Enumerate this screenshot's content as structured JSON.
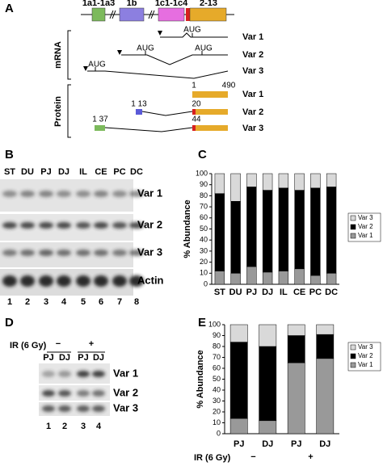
{
  "figure": {
    "A": {
      "label": "A",
      "exons": [
        "1a1-1a3",
        "1b",
        "1c1-1c4",
        "2-13"
      ],
      "mrna_label": "mRNA",
      "protein_label": "Protein",
      "mrna": [
        {
          "name": "Var 1",
          "codons": [
            "AUG"
          ]
        },
        {
          "name": "Var 2",
          "codons": [
            "AUG",
            "AUG"
          ]
        },
        {
          "name": "Var 3",
          "codons": [
            "AUG"
          ]
        }
      ],
      "protein": [
        {
          "name": "Var 1",
          "numbers": [
            "1",
            "490"
          ]
        },
        {
          "name": "Var 2",
          "numbers": [
            "1 13",
            "20"
          ]
        },
        {
          "name": "Var 3",
          "numbers": [
            "1 37",
            "44"
          ]
        }
      ]
    },
    "B": {
      "label": "B",
      "lanes": [
        "ST",
        "DU",
        "PJ",
        "DJ",
        "IL",
        "CE",
        "PC",
        "DC"
      ],
      "rows": [
        "Var 1",
        "Var 2",
        "Var 3",
        "Actin"
      ],
      "lane_numbers": [
        1,
        2,
        3,
        4,
        5,
        6,
        7,
        8
      ]
    },
    "D": {
      "label": "D",
      "treatment": "IR (6 Gy)",
      "groups": [
        "−",
        "+"
      ],
      "lanes": [
        "PJ",
        "DJ",
        "PJ",
        "DJ"
      ],
      "rows": [
        "Var 1",
        "Var 2",
        "Var 3"
      ],
      "lane_numbers": [
        1,
        2,
        3,
        4
      ]
    }
  },
  "chart_data": [
    {
      "type": "bar",
      "stacked": true,
      "panel": "C",
      "ylabel": "% Abundance",
      "categories": [
        "ST",
        "DU",
        "PJ",
        "DJ",
        "IL",
        "CE",
        "PC",
        "DC"
      ],
      "series": [
        {
          "name": "Var 1",
          "color": "#999999",
          "values": [
            12,
            10,
            16,
            11,
            12,
            14,
            8,
            10
          ]
        },
        {
          "name": "Var 2",
          "color": "#000000",
          "values": [
            70,
            65,
            72,
            74,
            75,
            71,
            79,
            78
          ]
        },
        {
          "name": "Var 3",
          "color": "#d9d9d9",
          "values": [
            18,
            25,
            12,
            15,
            13,
            15,
            13,
            12
          ]
        }
      ],
      "ylim": [
        0,
        100
      ],
      "yticks": [
        0,
        10,
        20,
        30,
        40,
        50,
        60,
        70,
        80,
        90,
        100
      ],
      "legend": "right"
    },
    {
      "type": "bar",
      "stacked": true,
      "panel": "E",
      "ylabel": "% Abundance",
      "categories": [
        "PJ",
        "DJ",
        "PJ",
        "DJ"
      ],
      "x_group_label": "IR (6 Gy)",
      "groups": [
        "−",
        "+"
      ],
      "series": [
        {
          "name": "Var 1",
          "color": "#999999",
          "values": [
            14,
            12,
            65,
            69
          ]
        },
        {
          "name": "Var 2",
          "color": "#000000",
          "values": [
            70,
            68,
            25,
            22
          ]
        },
        {
          "name": "Var 3",
          "color": "#d9d9d9",
          "values": [
            16,
            20,
            10,
            9
          ]
        }
      ],
      "ylim": [
        0,
        100
      ],
      "yticks": [
        0,
        10,
        20,
        30,
        40,
        50,
        60,
        70,
        80,
        90,
        100
      ],
      "legend": "right"
    }
  ]
}
